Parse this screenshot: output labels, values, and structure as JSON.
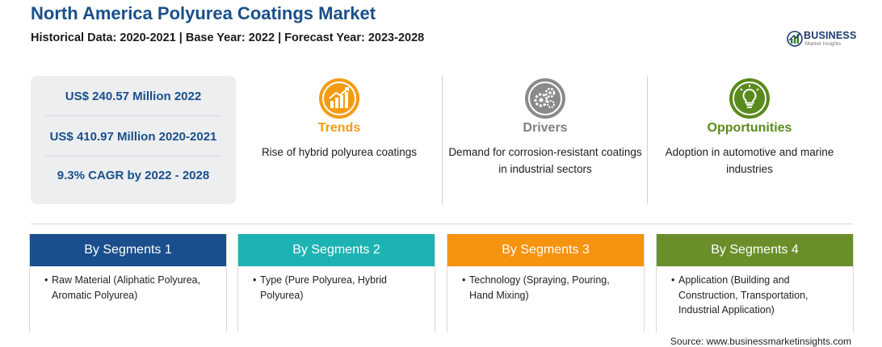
{
  "header": {
    "title": "North America Polyurea Coatings Market",
    "subtitle": "Historical Data: 2020-2021 | Base Year: 2022 | Forecast Year: 2023-2028"
  },
  "logo": {
    "brand": "BUSINESS",
    "sub": "Market Insights"
  },
  "stats": [
    "US$ 240.57 Million 2022",
    "US$ 410.97 Million 2020-2021",
    "9.3% CAGR by 2022 - 2028"
  ],
  "factors": [
    {
      "heading": "Trends",
      "description": "Rise of hybrid polyurea coatings",
      "color": "#f39c12",
      "icon": "growth-chart-icon"
    },
    {
      "heading": "Drivers",
      "description": "Demand for corrosion-resistant coatings in industrial sectors",
      "color": "#7f7f7f",
      "icon": "gears-icon"
    },
    {
      "heading": "Opportunities",
      "description": "Adoption in automotive and marine industries",
      "color": "#5a8a1c",
      "icon": "lightbulb-icon"
    }
  ],
  "segments": [
    {
      "title": "By Segments 1",
      "color": "#1b4e8c",
      "items": [
        "Raw Material (Aliphatic Polyurea, Aromatic Polyurea)"
      ]
    },
    {
      "title": "By Segments 2",
      "color": "#1eb3b3",
      "items": [
        "Type (Pure Polyurea, Hybrid Polyurea)"
      ]
    },
    {
      "title": "By Segments 3",
      "color": "#f6930f",
      "items": [
        "Technology (Spraying, Pouring, Hand Mixing)"
      ]
    },
    {
      "title": "By Segments 4",
      "color": "#6a8f2a",
      "items": [
        "Application (Building and Construction, Transportation, Industrial Application)"
      ]
    }
  ],
  "source": "Source: www.businessmarketinsights.com"
}
